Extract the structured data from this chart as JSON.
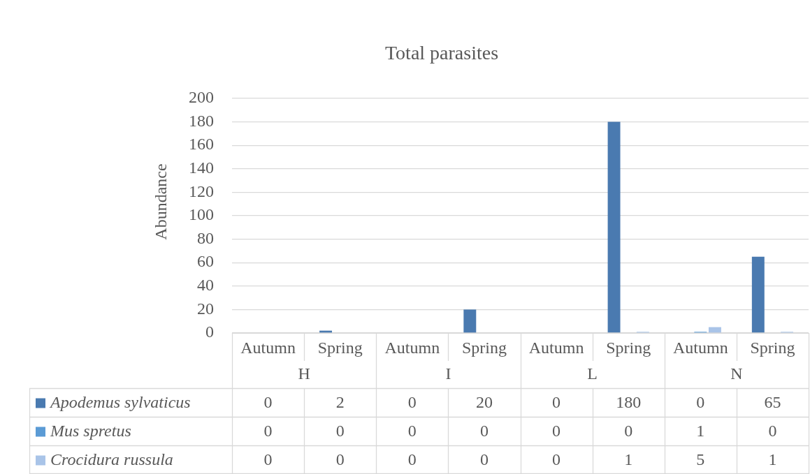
{
  "chart_data": {
    "type": "bar",
    "title": "Total parasites",
    "ylabel": "Abundance",
    "categories": [
      "Autumn",
      "Spring",
      "Autumn",
      "Spring",
      "Autumn",
      "Spring",
      "Autumn",
      "Spring"
    ],
    "annotations": [
      "H",
      "I",
      "L",
      "N"
    ],
    "series": [
      {
        "name": "Apodemus sylvaticus",
        "color": "#4a7ab0",
        "values": [
          0,
          2,
          0,
          20,
          0,
          180,
          0,
          65
        ]
      },
      {
        "name": "Mus spretus",
        "color": "#5b9bd5",
        "values": [
          0,
          0,
          0,
          0,
          0,
          0,
          1,
          0
        ]
      },
      {
        "name": "Crocidura russula",
        "color": "#a9c4e8",
        "values": [
          0,
          0,
          0,
          0,
          0,
          1,
          5,
          1
        ]
      }
    ],
    "ylim": [
      0,
      200
    ],
    "yticks": [
      0,
      20,
      40,
      60,
      80,
      100,
      120,
      140,
      160,
      180,
      200
    ],
    "grid": "y",
    "legend": "bottom",
    "data_labels": true
  }
}
